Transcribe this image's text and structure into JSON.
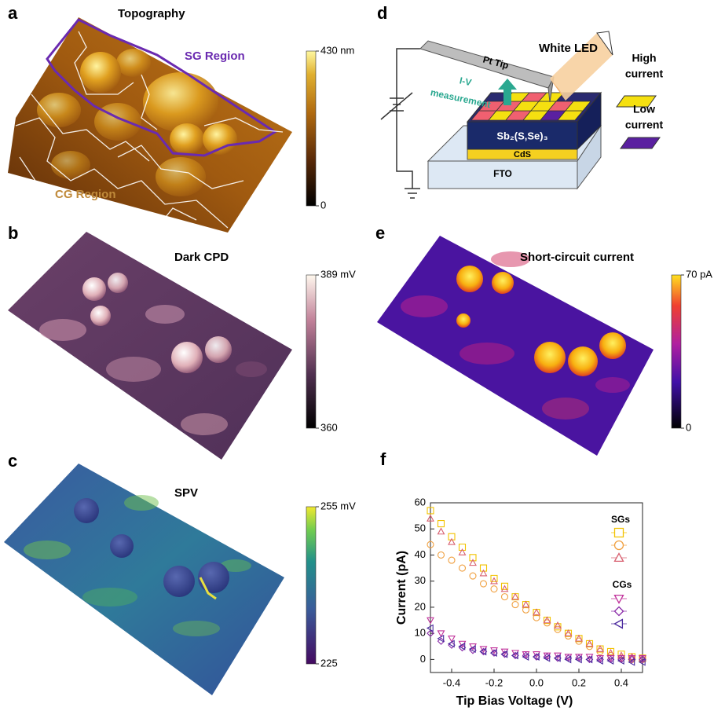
{
  "figure": {
    "panels": [
      {
        "label": "a",
        "title": "Topography",
        "annotations": [
          "SG Region",
          "CG Region"
        ],
        "colorbar": {
          "lim": [
            0,
            430
          ],
          "ticks": [
            {
              "value": 430,
              "label": "430 nm"
            },
            0
          ]
        }
      },
      {
        "label": "b",
        "title": "Dark CPD",
        "colorbar": {
          "lim": [
            360,
            389
          ],
          "ticks": [
            {
              "value": 389,
              "label": "389 mV"
            },
            360
          ]
        }
      },
      {
        "label": "c",
        "title": "SPV",
        "colorbar": {
          "lim": [
            225,
            255
          ],
          "ticks": [
            {
              "value": 255,
              "label": "255 mV"
            },
            225
          ]
        }
      },
      {
        "label": "e",
        "title": "Short-circuit current",
        "colorbar": {
          "lim": [
            0,
            70
          ],
          "ticks": [
            {
              "value": 70,
              "label": "70 pA"
            },
            0
          ]
        }
      }
    ],
    "diagram": {
      "label": "d",
      "tip": "Pt Tip",
      "light": "White LED",
      "measurement": [
        "I-V",
        "measurement"
      ],
      "absorber": "Sb₂(S,Se)₃",
      "buffer": "CdS",
      "substrate": "FTO",
      "legend": [
        [
          "High",
          "current"
        ],
        [
          "Low",
          "current"
        ]
      ]
    }
  },
  "chart_data": {
    "type": "scatter",
    "label": "f",
    "x_label": "Tip Bias Voltage (V)",
    "y_label": "Current (pA)",
    "x": [
      -0.5,
      -0.45,
      -0.4,
      -0.35,
      -0.3,
      -0.25,
      -0.2,
      -0.15,
      -0.1,
      -0.05,
      0,
      0.05,
      0.1,
      0.15,
      0.2,
      0.25,
      0.3,
      0.35,
      0.4,
      0.45,
      0.5
    ],
    "xlim": [
      -0.5,
      0.5
    ],
    "xticks": [
      -0.4,
      -0.2,
      {
        "value": 0,
        "label": "0.0"
      },
      0.2,
      0.4
    ],
    "ylim": [
      -5,
      60
    ],
    "yticks": [
      0,
      10,
      20,
      30,
      40,
      50,
      60
    ],
    "series_groups": [
      {
        "name": "SGs",
        "series": [
          {
            "marker": "square",
            "color": "#f2c200",
            "values": [
              57,
              52,
              47,
              43,
              39,
              35,
              31,
              28,
              24,
              21,
              18,
              15,
              12.5,
              10,
              8,
              6,
              4,
              3,
              2,
              1,
              0.5
            ]
          },
          {
            "marker": "circle",
            "color": "#f0a040",
            "values": [
              44,
              40,
              38,
              35,
              32,
              29,
              27,
              24,
              21,
              19,
              16,
              14,
              11.5,
              9,
              7,
              5,
              3,
              1.5,
              0.5,
              0,
              0
            ]
          },
          {
            "marker": "triangle-up",
            "color": "#d86070",
            "values": [
              54,
              49,
              45,
              41,
              37,
              33,
              30,
              27,
              24,
              21,
              18,
              15,
              13,
              10,
              8,
              6,
              4,
              2.5,
              1.5,
              1,
              0.5
            ]
          }
        ]
      },
      {
        "name": "CGs",
        "series": [
          {
            "marker": "triangle-down",
            "color": "#c0309a",
            "values": [
              15,
              10,
              8,
              6,
              5,
              4,
              3.5,
              3,
              2.5,
              2,
              2,
              1.5,
              1.5,
              1,
              1,
              1,
              0.5,
              0.5,
              0.5,
              0.5,
              0.5
            ]
          },
          {
            "marker": "diamond",
            "color": "#8a2aa8",
            "values": [
              10,
              7,
              5.5,
              4.5,
              3.5,
              3,
              2.5,
              2,
              1.5,
              1.5,
              1,
              1,
              0.5,
              0.5,
              0.5,
              0,
              0,
              0,
              0,
              0,
              0
            ]
          },
          {
            "marker": "triangle-left",
            "color": "#4b2a9e",
            "values": [
              12,
              8,
              6,
              5,
              4,
              3,
              2.5,
              2,
              1.5,
              1,
              1,
              0.5,
              0.5,
              0,
              0,
              0,
              -0.5,
              -0.5,
              -0.5,
              -1,
              -1
            ]
          }
        ]
      }
    ]
  }
}
